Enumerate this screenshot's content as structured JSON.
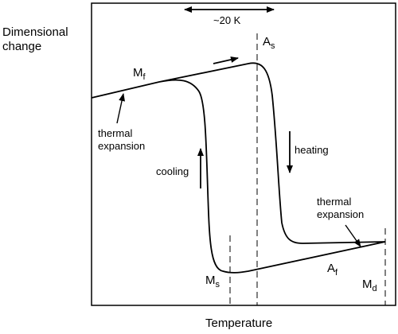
{
  "axes": {
    "y_label_line1": "Dimensional",
    "y_label_line2": "change",
    "x_label": "Temperature"
  },
  "annotations": {
    "hysteresis_width": "~20 K",
    "thermal_expansion_left_line1": "thermal",
    "thermal_expansion_left_line2": "expansion",
    "thermal_expansion_right_line1": "thermal",
    "thermal_expansion_right_line2": "expansion",
    "heating": "heating",
    "cooling": "cooling"
  },
  "temperatures": {
    "Mf": {
      "main": "M",
      "sub": "f"
    },
    "As": {
      "main": "A",
      "sub": "s"
    },
    "Ms": {
      "main": "M",
      "sub": "s"
    },
    "Af": {
      "main": "A",
      "sub": "f"
    },
    "Md": {
      "main": "M",
      "sub": "d"
    }
  },
  "colors": {
    "line": "#000000",
    "background": "#ffffff"
  }
}
